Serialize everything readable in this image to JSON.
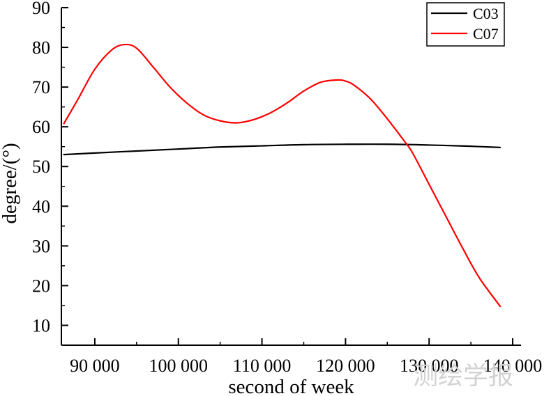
{
  "chart_data": {
    "type": "line",
    "xlabel": "second of week",
    "ylabel": "degree/(°)",
    "xlim": [
      86000,
      141000
    ],
    "ylim": [
      5,
      90
    ],
    "x_ticks": [
      90000,
      100000,
      110000,
      120000,
      130000,
      140000
    ],
    "x_tick_labels": [
      "90 000",
      "100 000",
      "110 000",
      "120 000",
      "130 000",
      "140 000"
    ],
    "y_ticks": [
      10,
      20,
      30,
      40,
      50,
      60,
      70,
      80,
      90
    ],
    "y_tick_labels": [
      "10",
      "20",
      "30",
      "40",
      "50",
      "60",
      "70",
      "80",
      "90"
    ],
    "grid": false,
    "legend_position": "top-right",
    "series": [
      {
        "name": "C03",
        "color": "#000000",
        "x": [
          86300,
          90000,
          95000,
          100000,
          105000,
          110000,
          115000,
          120000,
          125000,
          130000,
          135000,
          138500
        ],
        "y": [
          53.0,
          53.4,
          53.9,
          54.4,
          54.9,
          55.2,
          55.5,
          55.6,
          55.6,
          55.4,
          55.1,
          54.8
        ]
      },
      {
        "name": "C07",
        "color": "#ff0000",
        "x": [
          86300,
          88000,
          90000,
          92000,
          93500,
          95000,
          97000,
          99000,
          101000,
          103000,
          105000,
          107000,
          109000,
          111000,
          113000,
          115000,
          117000,
          119000,
          120000,
          121000,
          123000,
          125000,
          127000,
          128000,
          130000,
          132000,
          134000,
          136000,
          138500
        ],
        "y": [
          60.8,
          67.0,
          74.5,
          79.3,
          80.7,
          79.8,
          75.0,
          70.0,
          66.0,
          63.0,
          61.5,
          61.0,
          61.8,
          63.5,
          66.0,
          69.0,
          71.2,
          71.8,
          71.5,
          70.5,
          67.0,
          62.0,
          56.5,
          53.5,
          45.5,
          37.5,
          29.5,
          22.0,
          14.8
        ]
      }
    ]
  },
  "watermark": "测绘学报"
}
